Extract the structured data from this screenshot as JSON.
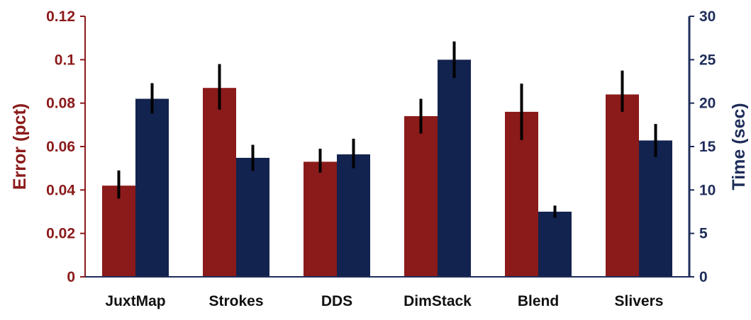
{
  "chart_data": {
    "type": "bar",
    "categories": [
      "JuxtMap",
      "Strokes",
      "DDS",
      "DimStack",
      "Blend",
      "Slivers"
    ],
    "series": [
      {
        "axis": "left",
        "color": "#8b1a1a",
        "values": [
          0.042,
          0.087,
          0.053,
          0.074,
          0.076,
          0.084
        ],
        "error_low": [
          0.036,
          0.077,
          0.048,
          0.066,
          0.063,
          0.076
        ],
        "error_high": [
          0.049,
          0.098,
          0.059,
          0.082,
          0.089,
          0.095
        ]
      },
      {
        "axis": "right",
        "color": "#13234f",
        "values": [
          20.5,
          13.7,
          14.1,
          25.0,
          7.5,
          15.7
        ],
        "error_low": [
          18.8,
          12.2,
          12.5,
          22.9,
          6.8,
          13.8
        ],
        "error_high": [
          22.3,
          15.2,
          15.9,
          27.1,
          8.2,
          17.6
        ]
      }
    ],
    "ylabel_left": "Error (pct)",
    "ylabel_right": "Time (sec)",
    "ylim_left": [
      0,
      0.12
    ],
    "ylim_right": [
      0,
      30
    ],
    "yticks_left": [
      "0",
      "0.02",
      "0.04",
      "0.06",
      "0.08",
      "0.1",
      "0.12"
    ],
    "yticks_right": [
      "0",
      "5",
      "10",
      "15",
      "20",
      "25",
      "30"
    ],
    "grid": false,
    "legend": "none"
  }
}
